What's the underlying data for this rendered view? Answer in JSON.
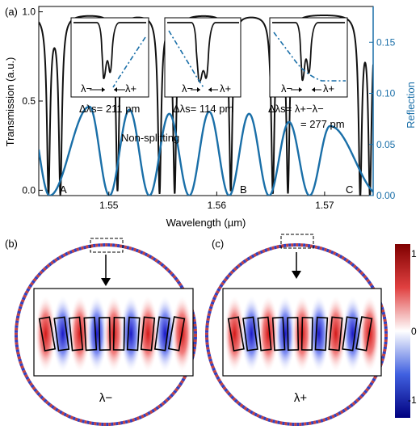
{
  "panel_a": {
    "label": "(a)",
    "ylabel_left": "Transmission (a.u.)",
    "ylabel_right": "Reflection",
    "xlabel": "Wavelength (µm)",
    "left_ticks": [
      "0.0",
      "0.5",
      "1.0"
    ],
    "right_ticks": [
      "0.00",
      "0.05",
      "0.10",
      "0.15"
    ],
    "x_ticks": [
      "1.55",
      "1.56",
      "1.57"
    ],
    "dip_labels": [
      "A",
      "B",
      "C"
    ],
    "non_splitting": "Non-splitting",
    "insets": [
      {
        "lam_minus": "λ−",
        "lam_plus": "λ+",
        "delta": "Δλs= 211 pm"
      },
      {
        "lam_minus": "λ−",
        "lam_plus": "λ+",
        "delta": "Δλs= 114 pm"
      },
      {
        "lam_minus": "λ−",
        "lam_plus": "λ+",
        "delta": "Δλs= λ+−λ−",
        "delta2": "= 277 pm"
      }
    ],
    "colors": {
      "transmission": "#111111",
      "reflection": "#1a6fa8",
      "right_axis": "#1a6fa8"
    }
  },
  "panel_b": {
    "label": "(b)",
    "mode": "λ−"
  },
  "panel_c": {
    "label": "(c)",
    "mode": "λ+"
  },
  "colorbar": {
    "ticks": [
      "1",
      "0",
      "-1"
    ],
    "colors": {
      "high": "#8b0000",
      "mid": "#ffffff",
      "low": "#00008b"
    }
  },
  "chart_data": {
    "type": "line",
    "xlabel": "Wavelength (µm)",
    "ylabel": "Transmission (a.u.)",
    "ylabel_right": "Reflection",
    "xlim": [
      1.5435,
      1.5745
    ],
    "ylim": [
      -0.03,
      1.03
    ],
    "ylim_right": [
      0.0,
      0.185
    ],
    "grid": false,
    "series": [
      {
        "name": "Transmission",
        "axis": "left",
        "baseline": 0.99,
        "dips": [
          1.5444,
          1.5455,
          1.5508,
          1.5547,
          1.5561,
          1.5613,
          1.5652,
          1.5666,
          1.5733,
          1.5742
        ],
        "dip_min": 0.0
      },
      {
        "name": "Reflection",
        "axis": "right",
        "peaks_x": [
          1.5482,
          1.5519,
          1.5556,
          1.5593,
          1.563,
          1.5667,
          1.5705
        ],
        "peaks_y": [
          0.087,
          0.084,
          0.08,
          0.082,
          0.08,
          0.072,
          0.068
        ],
        "troughs_x": [
          1.5445,
          1.5752
        ],
        "period": 0.0037
      }
    ]
  }
}
